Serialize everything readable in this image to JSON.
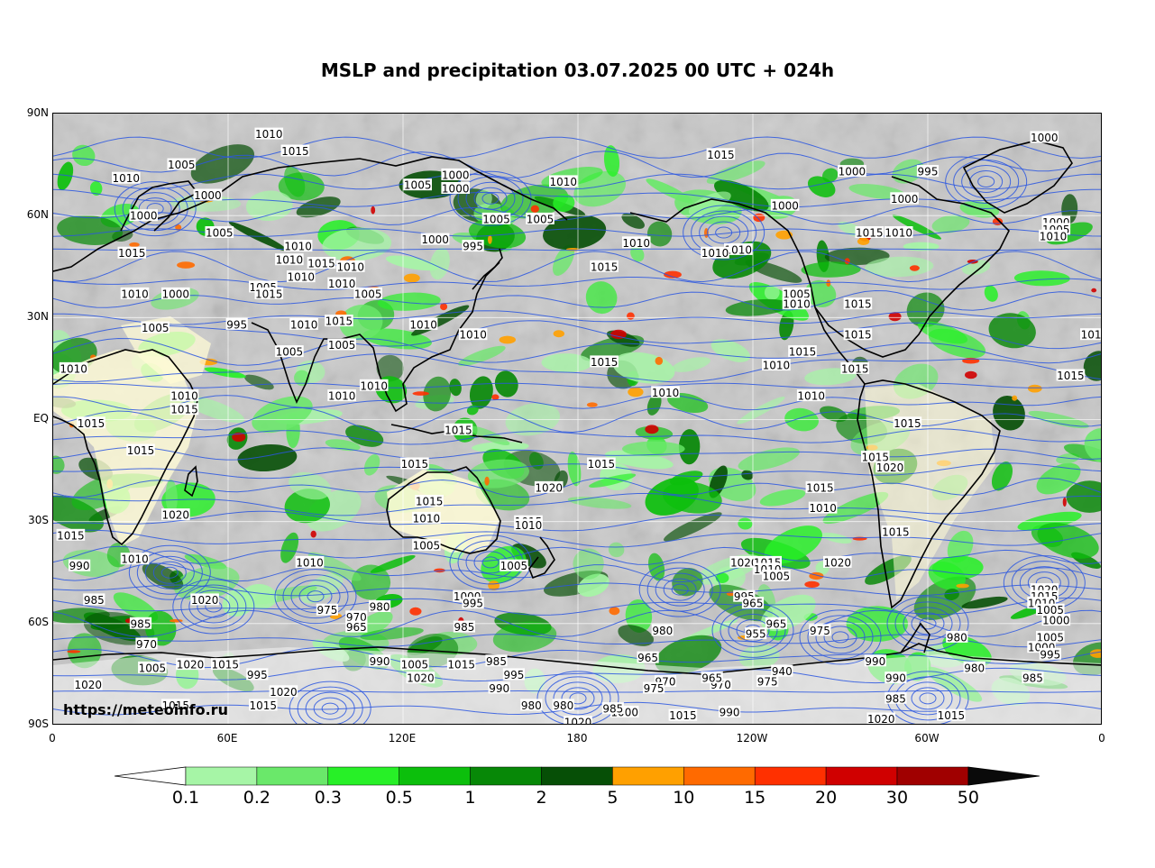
{
  "title": "MSLP and precipitation 03.07.2025 00 UTC + 024h",
  "watermark": "https://meteoinfo.ru",
  "lat_labels": [
    "90N",
    "60N",
    "30N",
    "EQ",
    "30S",
    "60S",
    "90S"
  ],
  "lon_labels": [
    "0",
    "60E",
    "120E",
    "180",
    "120W",
    "60W",
    "0"
  ],
  "colorbar": {
    "levels": [
      "0.1",
      "0.2",
      "0.3",
      "0.5",
      "1",
      "2",
      "5",
      "10",
      "15",
      "20",
      "30",
      "50"
    ],
    "colors": [
      "#a6f5a6",
      "#6ae86a",
      "#27f027",
      "#0cbf0c",
      "#078807",
      "#064f06",
      "#ffa000",
      "#ff6a00",
      "#ff3000",
      "#d00000",
      "#a00000"
    ],
    "under_color": "#ffffff",
    "over_color": "#0a0a0a"
  },
  "colors": {
    "isobar": "#2a56e0",
    "coast": "#000000",
    "grid": "#ffffff",
    "background_gray": "#c9c9c9",
    "land_dry": "#fffbd6"
  },
  "pressure_labels": [
    {
      "text": "1010",
      "lon": 74,
      "lat": 84
    },
    {
      "text": "1015",
      "lon": 83,
      "lat": 79
    },
    {
      "text": "1005",
      "lon": 44,
      "lat": 75
    },
    {
      "text": "1010",
      "lon": 25,
      "lat": 71
    },
    {
      "text": "1000",
      "lon": 53,
      "lat": 66
    },
    {
      "text": "1000",
      "lon": 31,
      "lat": 60
    },
    {
      "text": "1005",
      "lon": 57,
      "lat": 55
    },
    {
      "text": "1015",
      "lon": 27,
      "lat": 49
    },
    {
      "text": "1010",
      "lon": 28,
      "lat": 37
    },
    {
      "text": "1000",
      "lon": 42,
      "lat": 37
    },
    {
      "text": "1005",
      "lon": 35,
      "lat": 27
    },
    {
      "text": "1010",
      "lon": 7,
      "lat": 15
    },
    {
      "text": "1010",
      "lon": 45,
      "lat": 7
    },
    {
      "text": "1015",
      "lon": 45,
      "lat": 3
    },
    {
      "text": "1015",
      "lon": 13,
      "lat": -1
    },
    {
      "text": "1015",
      "lon": 30,
      "lat": -9
    },
    {
      "text": "1020",
      "lon": 42,
      "lat": -28
    },
    {
      "text": "1015",
      "lon": 6,
      "lat": -34
    },
    {
      "text": "990",
      "lon": 9,
      "lat": -43
    },
    {
      "text": "985",
      "lon": 14,
      "lat": -53
    },
    {
      "text": "1010",
      "lon": 28,
      "lat": -41
    },
    {
      "text": "1020",
      "lon": 52,
      "lat": -53
    },
    {
      "text": "985",
      "lon": 30,
      "lat": -60
    },
    {
      "text": "970",
      "lon": 32,
      "lat": -66
    },
    {
      "text": "1005",
      "lon": 34,
      "lat": -73
    },
    {
      "text": "1020",
      "lon": 47,
      "lat": -72
    },
    {
      "text": "1015",
      "lon": 59,
      "lat": -72
    },
    {
      "text": "1020",
      "lon": 12,
      "lat": -78
    },
    {
      "text": "1015",
      "lon": 42,
      "lat": -84
    },
    {
      "text": "995",
      "lon": 70,
      "lat": -75
    },
    {
      "text": "1015",
      "lon": 72,
      "lat": -84
    },
    {
      "text": "1020",
      "lon": 79,
      "lat": -80
    },
    {
      "text": "1010",
      "lon": 88,
      "lat": -42
    },
    {
      "text": "975",
      "lon": 94,
      "lat": -56
    },
    {
      "text": "970",
      "lon": 104,
      "lat": -58
    },
    {
      "text": "965",
      "lon": 104,
      "lat": -61
    },
    {
      "text": "980",
      "lon": 112,
      "lat": -55
    },
    {
      "text": "990",
      "lon": 112,
      "lat": -71
    },
    {
      "text": "1005",
      "lon": 124,
      "lat": -72
    },
    {
      "text": "1020",
      "lon": 126,
      "lat": -76
    },
    {
      "text": "1015",
      "lon": 140,
      "lat": -72
    },
    {
      "text": "985",
      "lon": 152,
      "lat": -71
    },
    {
      "text": "995",
      "lon": 158,
      "lat": -75
    },
    {
      "text": "990",
      "lon": 153,
      "lat": -79
    },
    {
      "text": "980",
      "lon": 164,
      "lat": -84
    },
    {
      "text": "980",
      "lon": 175,
      "lat": -84
    },
    {
      "text": "1020",
      "lon": 180,
      "lat": -89
    },
    {
      "text": "985",
      "lon": 141,
      "lat": -61
    },
    {
      "text": "1000",
      "lon": 142,
      "lat": -52
    },
    {
      "text": "995",
      "lon": 144,
      "lat": -54
    },
    {
      "text": "1015",
      "lon": 124,
      "lat": -13
    },
    {
      "text": "1015",
      "lon": 129,
      "lat": -24
    },
    {
      "text": "1010",
      "lon": 128,
      "lat": -29
    },
    {
      "text": "1005",
      "lon": 128,
      "lat": -37
    },
    {
      "text": "1015",
      "lon": 163,
      "lat": -30
    },
    {
      "text": "1010",
      "lon": 163,
      "lat": -31
    },
    {
      "text": "1005",
      "lon": 158,
      "lat": -43
    },
    {
      "text": "1020",
      "lon": 170,
      "lat": -20
    },
    {
      "text": "1015",
      "lon": 188,
      "lat": -13
    },
    {
      "text": "1015",
      "lon": 139,
      "lat": -3
    },
    {
      "text": "1010",
      "lon": 110,
      "lat": 10
    },
    {
      "text": "1010",
      "lon": 99,
      "lat": 7
    },
    {
      "text": "1005",
      "lon": 81,
      "lat": 20
    },
    {
      "text": "1005",
      "lon": 99,
      "lat": 22
    },
    {
      "text": "1015",
      "lon": 98,
      "lat": 29
    },
    {
      "text": "1010",
      "lon": 86,
      "lat": 28
    },
    {
      "text": "995",
      "lon": 63,
      "lat": 28
    },
    {
      "text": "1010",
      "lon": 127,
      "lat": 28
    },
    {
      "text": "1010",
      "lon": 144,
      "lat": 25
    },
    {
      "text": "1005",
      "lon": 72,
      "lat": 39
    },
    {
      "text": "1015",
      "lon": 74,
      "lat": 37
    },
    {
      "text": "1010",
      "lon": 85,
      "lat": 42
    },
    {
      "text": "1010",
      "lon": 81,
      "lat": 47
    },
    {
      "text": "1015",
      "lon": 92,
      "lat": 46
    },
    {
      "text": "1010",
      "lon": 102,
      "lat": 45
    },
    {
      "text": "1010",
      "lon": 99,
      "lat": 40
    },
    {
      "text": "1005",
      "lon": 108,
      "lat": 37
    },
    {
      "text": "1010",
      "lon": 84,
      "lat": 51
    },
    {
      "text": "1000",
      "lon": 131,
      "lat": 53
    },
    {
      "text": "995",
      "lon": 144,
      "lat": 51
    },
    {
      "text": "1005",
      "lon": 152,
      "lat": 59
    },
    {
      "text": "1005",
      "lon": 167,
      "lat": 59
    },
    {
      "text": "1000",
      "lon": 138,
      "lat": 72
    },
    {
      "text": "1000",
      "lon": 138,
      "lat": 68
    },
    {
      "text": "1005",
      "lon": 125,
      "lat": 69
    },
    {
      "text": "1010",
      "lon": 175,
      "lat": 70
    },
    {
      "text": "1010",
      "lon": 200,
      "lat": 52
    },
    {
      "text": "1015",
      "lon": 189,
      "lat": 45
    },
    {
      "text": "1015",
      "lon": 229,
      "lat": 78
    },
    {
      "text": "1000",
      "lon": 251,
      "lat": 63
    },
    {
      "text": "1010",
      "lon": 235,
      "lat": 50
    },
    {
      "text": "1010",
      "lon": 227,
      "lat": 49
    },
    {
      "text": "1005",
      "lon": 255,
      "lat": 37
    },
    {
      "text": "1010",
      "lon": 255,
      "lat": 34
    },
    {
      "text": "1015",
      "lon": 257,
      "lat": 20
    },
    {
      "text": "1010",
      "lon": 248,
      "lat": 16
    },
    {
      "text": "1015",
      "lon": 189,
      "lat": 17
    },
    {
      "text": "1010",
      "lon": 210,
      "lat": 8
    },
    {
      "text": "1010",
      "lon": 260,
      "lat": 7
    },
    {
      "text": "1015",
      "lon": 275,
      "lat": 15
    },
    {
      "text": "1015",
      "lon": 276,
      "lat": 25
    },
    {
      "text": "1015",
      "lon": 276,
      "lat": 34
    },
    {
      "text": "1015",
      "lon": 280,
      "lat": 55
    },
    {
      "text": "1010",
      "lon": 290,
      "lat": 55
    },
    {
      "text": "1000",
      "lon": 274,
      "lat": 73
    },
    {
      "text": "995",
      "lon": 300,
      "lat": 73
    },
    {
      "text": "1000",
      "lon": 292,
      "lat": 65
    },
    {
      "text": "1000",
      "lon": 340,
      "lat": 83
    },
    {
      "text": "1000",
      "lon": 344,
      "lat": 58
    },
    {
      "text": "1005",
      "lon": 344,
      "lat": 56
    },
    {
      "text": "1010",
      "lon": 343,
      "lat": 54
    },
    {
      "text": "101",
      "lon": 356,
      "lat": 25
    },
    {
      "text": "1015",
      "lon": 349,
      "lat": 13
    },
    {
      "text": "1015",
      "lon": 293,
      "lat": -1
    },
    {
      "text": "1015",
      "lon": 282,
      "lat": -11
    },
    {
      "text": "1020",
      "lon": 287,
      "lat": -14
    },
    {
      "text": "1015",
      "lon": 263,
      "lat": -20
    },
    {
      "text": "1010",
      "lon": 264,
      "lat": -26
    },
    {
      "text": "1015",
      "lon": 289,
      "lat": -33
    },
    {
      "text": "1020",
      "lon": 269,
      "lat": -42
    },
    {
      "text": "1020",
      "lon": 237,
      "lat": -42
    },
    {
      "text": "1015",
      "lon": 245,
      "lat": -42
    },
    {
      "text": "1010",
      "lon": 245,
      "lat": -44
    },
    {
      "text": "1005",
      "lon": 248,
      "lat": -46
    },
    {
      "text": "995",
      "lon": 237,
      "lat": -52
    },
    {
      "text": "965",
      "lon": 240,
      "lat": -54
    },
    {
      "text": "965",
      "lon": 248,
      "lat": -60
    },
    {
      "text": "955",
      "lon": 241,
      "lat": -63
    },
    {
      "text": "975",
      "lon": 263,
      "lat": -62
    },
    {
      "text": "980",
      "lon": 209,
      "lat": -62
    },
    {
      "text": "965",
      "lon": 204,
      "lat": -70
    },
    {
      "text": "940",
      "lon": 250,
      "lat": -74
    },
    {
      "text": "975",
      "lon": 245,
      "lat": -77
    },
    {
      "text": "970",
      "lon": 229,
      "lat": -78
    },
    {
      "text": "965",
      "lon": 226,
      "lat": -76
    },
    {
      "text": "970",
      "lon": 210,
      "lat": -77
    },
    {
      "text": "975",
      "lon": 206,
      "lat": -79
    },
    {
      "text": "1000",
      "lon": 196,
      "lat": -86
    },
    {
      "text": "1015",
      "lon": 216,
      "lat": -87
    },
    {
      "text": "990",
      "lon": 232,
      "lat": -86
    },
    {
      "text": "985",
      "lon": 192,
      "lat": -85
    },
    {
      "text": "990",
      "lon": 282,
      "lat": -71
    },
    {
      "text": "990",
      "lon": 289,
      "lat": -76
    },
    {
      "text": "985",
      "lon": 289,
      "lat": -82
    },
    {
      "text": "1020",
      "lon": 284,
      "lat": -88
    },
    {
      "text": "1015",
      "lon": 308,
      "lat": -87
    },
    {
      "text": "980",
      "lon": 310,
      "lat": -64
    },
    {
      "text": "980",
      "lon": 316,
      "lat": -73
    },
    {
      "text": "1020",
      "lon": 340,
      "lat": -50
    },
    {
      "text": "1015",
      "lon": 340,
      "lat": -52
    },
    {
      "text": "1010",
      "lon": 339,
      "lat": -54
    },
    {
      "text": "1005",
      "lon": 342,
      "lat": -56
    },
    {
      "text": "1000",
      "lon": 344,
      "lat": -59
    },
    {
      "text": "1005",
      "lon": 342,
      "lat": -64
    },
    {
      "text": "1000",
      "lon": 339,
      "lat": -67
    },
    {
      "text": "995",
      "lon": 342,
      "lat": -69
    },
    {
      "text": "985",
      "lon": 336,
      "lat": -76
    }
  ]
}
